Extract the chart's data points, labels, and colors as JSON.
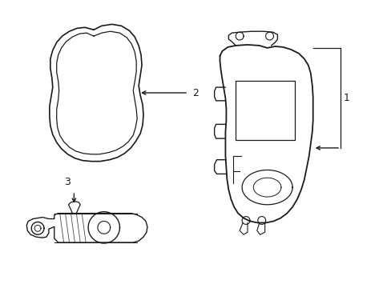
{
  "bg_color": "#ffffff",
  "line_color": "#1a1a1a",
  "line_width": 1.0,
  "fig_width": 4.89,
  "fig_height": 3.6,
  "dpi": 100
}
